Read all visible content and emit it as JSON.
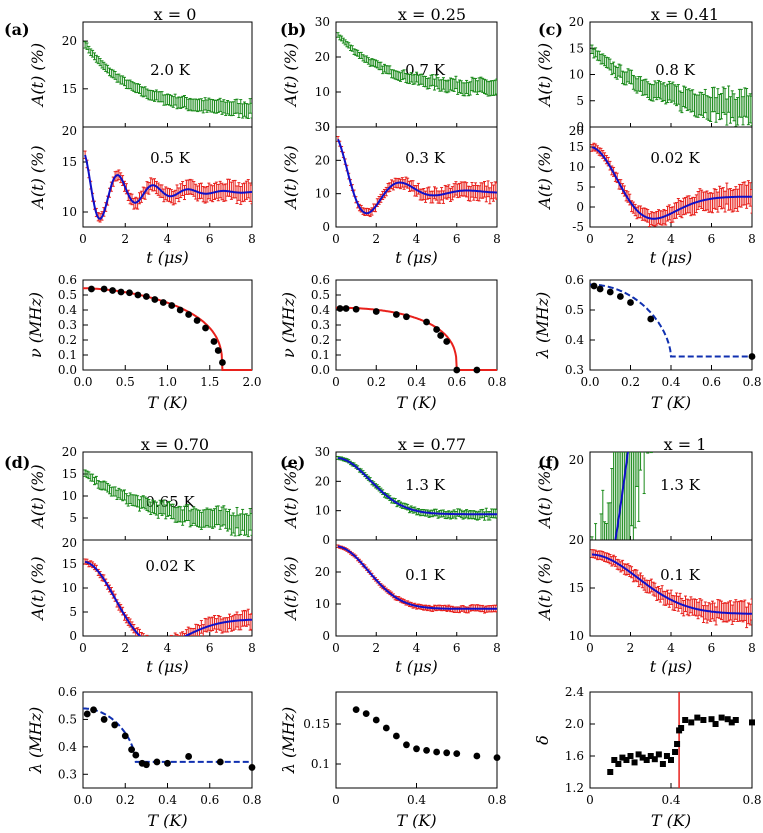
{
  "colors": {
    "hot": "#1a8a1a",
    "cold": "#e8211c",
    "fit": "#1010c8",
    "fit_order": "#e8211c",
    "fit_lambda": "#1030b0",
    "marker": "#000000",
    "tc_line": "#e8211c"
  },
  "chart_data": [
    {
      "id": "a",
      "type": "line",
      "panel_label": "(a)",
      "title": "x = 0",
      "top": {
        "temp_label": "2.0 K",
        "ylabel": "A(t) (%)",
        "ylim": [
          11,
          22
        ],
        "yticks": [
          15,
          20
        ],
        "curve": "decay",
        "start": 20,
        "end": 12.7,
        "tau": 2.2,
        "noise": 0.35
      },
      "bottom": {
        "temp_label": "0.5 K",
        "ylabel": "A(t) (%)",
        "ylim": [
          8.5,
          18.5
        ],
        "yticks": [
          10,
          15
        ],
        "curve": "osc",
        "base": 12.0,
        "amp": 4.2,
        "decay": 0.55,
        "freq": 0.55,
        "noise": 0.45,
        "xlabel": "t (μs)",
        "xlim": [
          0,
          8
        ],
        "xticks": [
          0,
          2,
          4,
          6,
          8
        ]
      },
      "top_axis_label": "20",
      "lower": {
        "type": "scatter",
        "xlabel": "T (K)",
        "ylabel": "ν (MHz)",
        "xlim": [
          0,
          2.0
        ],
        "ylim": [
          0,
          0.6
        ],
        "xticks": [
          0,
          0.5,
          1.0,
          1.5,
          2.0
        ],
        "xtick_labels": [
          "0.0",
          "0.5",
          "1.0",
          "1.5",
          "2.0"
        ],
        "yticks": [
          0,
          0.1,
          0.2,
          0.3,
          0.4,
          0.5,
          0.6
        ],
        "ytick_labels": [
          "0.0",
          "0.1",
          "0.2",
          "0.3",
          "0.4",
          "0.5",
          "0.6"
        ],
        "x": [
          0.1,
          0.25,
          0.35,
          0.45,
          0.55,
          0.65,
          0.75,
          0.85,
          0.95,
          1.05,
          1.15,
          1.25,
          1.35,
          1.45,
          1.55,
          1.6,
          1.65
        ],
        "y": [
          0.54,
          0.54,
          0.53,
          0.52,
          0.515,
          0.5,
          0.49,
          0.47,
          0.45,
          0.43,
          0.4,
          0.37,
          0.33,
          0.28,
          0.19,
          0.13,
          0.05
        ],
        "fit": {
          "kind": "order",
          "y0": 0.545,
          "tc": 1.65,
          "alpha": 1.7,
          "beta": 0.35,
          "xmax": 2.0
        }
      }
    },
    {
      "id": "b",
      "type": "line",
      "panel_label": "(b)",
      "title": "x = 0.25",
      "top": {
        "temp_label": "0.7 K",
        "ylabel": "A(t) (%)",
        "ylim": [
          0,
          30
        ],
        "yticks": [
          0,
          10,
          20,
          30
        ],
        "curve": "decay",
        "start": 27,
        "end": 10.5,
        "tau": 2.4,
        "noise": 1.2
      },
      "bottom": {
        "temp_label": "0.3 K",
        "ylabel": "A(t) (%)",
        "ylim": [
          0,
          30
        ],
        "yticks": [
          0,
          10,
          20,
          30
        ],
        "curve": "osc2",
        "base": 10.5,
        "amp": 17,
        "decay": 0.55,
        "freq": 0.3,
        "noise": 1.4,
        "xlabel": "t (μs)",
        "xlim": [
          0,
          8
        ],
        "xticks": [
          0,
          2,
          4,
          6,
          8
        ]
      },
      "lower": {
        "type": "scatter",
        "xlabel": "T (K)",
        "ylabel": "ν (MHz)",
        "xlim": [
          0,
          0.8
        ],
        "ylim": [
          0,
          0.6
        ],
        "xticks": [
          0,
          0.2,
          0.4,
          0.6,
          0.8
        ],
        "xtick_labels": [
          "0",
          "0.2",
          "0.4",
          "0.6",
          "0.8"
        ],
        "yticks": [
          0,
          0.1,
          0.2,
          0.3,
          0.4,
          0.5,
          0.6
        ],
        "ytick_labels": [
          "0.0",
          "0.1",
          "0.2",
          "0.3",
          "0.4",
          "0.5",
          "0.6"
        ],
        "x": [
          0.02,
          0.05,
          0.1,
          0.2,
          0.3,
          0.35,
          0.45,
          0.5,
          0.52,
          0.55,
          0.6,
          0.7
        ],
        "y": [
          0.41,
          0.41,
          0.405,
          0.39,
          0.37,
          0.355,
          0.32,
          0.27,
          0.23,
          0.19,
          0.0,
          0.0
        ],
        "fit": {
          "kind": "order",
          "y0": 0.415,
          "tc": 0.6,
          "alpha": 2.2,
          "beta": 0.35,
          "xmax": 0.8
        }
      }
    },
    {
      "id": "c",
      "type": "line",
      "panel_label": "(c)",
      "title": "x = 0.41",
      "top": {
        "temp_label": "0.8 K",
        "ylabel": "A(t) (%)",
        "ylim": [
          0,
          20
        ],
        "yticks": [
          0,
          5,
          10,
          15,
          20
        ],
        "curve": "decay",
        "start": 15,
        "end": 2.8,
        "tau": 3.0,
        "noise": 1.6
      },
      "bottom": {
        "temp_label": "0.02 K",
        "ylabel": "A(t) (%)",
        "ylim": [
          -5,
          20
        ],
        "yticks": [
          -5,
          0,
          5,
          10,
          15
        ],
        "curve": "kt",
        "base": 2.6,
        "amp": 12.4,
        "sigma": 0.55,
        "noise": 1.7,
        "xlabel": "t (μs)",
        "xlim": [
          0,
          8
        ],
        "xticks": [
          0,
          2,
          4,
          6,
          8
        ]
      },
      "top_axis_label": "20",
      "lower": {
        "type": "scatter",
        "xlabel": "T (K)",
        "ylabel": "λ (MHz)",
        "xlim": [
          0,
          0.8
        ],
        "ylim": [
          0.3,
          0.6
        ],
        "xticks": [
          0,
          0.2,
          0.4,
          0.6,
          0.8
        ],
        "xtick_labels": [
          "0.0",
          "0.2",
          "0.4",
          "0.6",
          "0.8"
        ],
        "yticks": [
          0.3,
          0.4,
          0.5,
          0.6
        ],
        "ytick_labels": [
          "0.3",
          "0.4",
          "0.5",
          "0.6"
        ],
        "x": [
          0.02,
          0.05,
          0.1,
          0.15,
          0.2,
          0.3,
          0.8
        ],
        "y": [
          0.58,
          0.57,
          0.56,
          0.545,
          0.525,
          0.47,
          0.345
        ],
        "fit": {
          "kind": "lambda",
          "y0": 0.585,
          "tc": 0.4,
          "ybase": 0.345,
          "alpha": 2.0,
          "beta": 0.6,
          "xmax": 0.8
        }
      }
    },
    {
      "id": "d",
      "type": "line",
      "panel_label": "(d)",
      "title": "x = 0.70",
      "top": {
        "temp_label": "0.65 K",
        "ylabel": "A(t) (%)",
        "ylim": [
          0,
          20
        ],
        "yticks": [
          5,
          10,
          15,
          20
        ],
        "curve": "decay",
        "start": 15.5,
        "end": 3.0,
        "tau": 3.2,
        "noise": 1.4
      },
      "bottom": {
        "temp_label": "0.02 K",
        "ylabel": "A(t) (%)",
        "ylim": [
          0,
          20
        ],
        "yticks": [
          0,
          5,
          10,
          15
        ],
        "curve": "kt",
        "base": 3.5,
        "amp": 12.0,
        "sigma": 0.48,
        "noise": 0.9,
        "xlabel": "t (μs)",
        "xlim": [
          0,
          8
        ],
        "xticks": [
          0,
          2,
          4,
          6,
          8
        ]
      },
      "top_axis_label": "20",
      "lower": {
        "type": "scatter",
        "xlabel": "T (K)",
        "ylabel": "λ (MHz)",
        "xlim": [
          0,
          0.8
        ],
        "ylim": [
          0.25,
          0.6
        ],
        "xticks": [
          0,
          0.2,
          0.4,
          0.6,
          0.8
        ],
        "xtick_labels": [
          "0.0",
          "0.2",
          "0.4",
          "0.6",
          "0.8"
        ],
        "yticks": [
          0.3,
          0.4,
          0.5,
          0.6
        ],
        "ytick_labels": [
          "0.3",
          "0.4",
          "0.5",
          "0.6"
        ],
        "x": [
          0.02,
          0.05,
          0.1,
          0.15,
          0.2,
          0.23,
          0.25,
          0.28,
          0.3,
          0.35,
          0.4,
          0.5,
          0.65,
          0.8
        ],
        "y": [
          0.52,
          0.535,
          0.5,
          0.48,
          0.44,
          0.39,
          0.37,
          0.34,
          0.335,
          0.345,
          0.34,
          0.365,
          0.345,
          0.325
        ],
        "fit": {
          "kind": "lambda",
          "y0": 0.54,
          "tc": 0.25,
          "ybase": 0.345,
          "alpha": 2.0,
          "beta": 0.6,
          "xmax": 0.8
        }
      }
    },
    {
      "id": "e",
      "type": "line",
      "panel_label": "(e)",
      "title": "x = 0.77",
      "top": {
        "temp_label": "1.3 K",
        "ylabel": "A(t) (%)",
        "ylim": [
          0,
          30
        ],
        "yticks": [
          0,
          10,
          20,
          30
        ],
        "curve": "gauss",
        "start": 28,
        "end": 8.8,
        "sigma": 0.42,
        "noise": 0.8
      },
      "bottom": {
        "temp_label": "0.1 K",
        "ylabel": "A(t) (%)",
        "ylim": [
          0,
          30
        ],
        "yticks": [
          0,
          10,
          20
        ],
        "curve": "gauss",
        "start": 28,
        "end": 8.5,
        "sigma": 0.44,
        "noise": 0.5,
        "xlabel": "t (μs)",
        "xlim": [
          0,
          8
        ],
        "xticks": [
          0,
          2,
          4,
          6,
          8
        ]
      },
      "lower": {
        "type": "scatter",
        "xlabel": "T (K)",
        "ylabel": "λ (MHz)",
        "xlim": [
          0,
          0.8
        ],
        "ylim": [
          0.07,
          0.19
        ],
        "xticks": [
          0,
          0.4,
          0.8
        ],
        "xtick_labels": [
          "0",
          "0.4",
          "0.8"
        ],
        "yticks": [
          0.1,
          0.15
        ],
        "ytick_labels": [
          "0.1",
          "0.15"
        ],
        "x": [
          0.1,
          0.15,
          0.2,
          0.25,
          0.3,
          0.35,
          0.4,
          0.45,
          0.5,
          0.55,
          0.6,
          0.7,
          0.8
        ],
        "y": [
          0.168,
          0.163,
          0.155,
          0.145,
          0.135,
          0.124,
          0.119,
          0.117,
          0.115,
          0.114,
          0.113,
          0.11,
          0.108
        ]
      }
    },
    {
      "id": "f",
      "type": "line",
      "panel_label": "(f)",
      "title": "x = 1",
      "top": {
        "temp_label": "1.3 K",
        "ylabel": "A(t) (%)",
        "ylim": [
          20,
          20.4
        ],
        "yticks": [
          20
        ],
        "curve": "gauss",
        "start": 19.6,
        "end": 22.0,
        "sigma": 0.34,
        "noise": 0.45,
        "band": [
          19,
          21
        ],
        "ticklabels_override": [
          "20"
        ]
      },
      "bottom": {
        "temp_label": "0.1 K",
        "ylabel": "A(t) (%)",
        "ylim": [
          10,
          20
        ],
        "yticks": [
          10,
          15,
          20
        ],
        "curve": "gauss",
        "start": 18.5,
        "end": 12.3,
        "sigma": 0.3,
        "noise": 0.55,
        "xlabel": "t (μs)",
        "xlim": [
          0,
          8
        ],
        "xticks": [
          0,
          2,
          4,
          6,
          8
        ]
      },
      "lower": {
        "type": "scatter",
        "xlabel": "T (K)",
        "ylabel": "δ",
        "xlim": [
          0,
          0.8
        ],
        "ylim": [
          1.2,
          2.4
        ],
        "xticks": [
          0,
          0.4,
          0.8
        ],
        "xtick_labels": [
          "0",
          "0.4",
          "0.8"
        ],
        "yticks": [
          1.2,
          1.6,
          2.0,
          2.4
        ],
        "ytick_labels": [
          "1.2",
          "1.6",
          "2.0",
          "2.4"
        ],
        "vline": 0.44,
        "x": [
          0.1,
          0.12,
          0.14,
          0.16,
          0.18,
          0.2,
          0.22,
          0.24,
          0.26,
          0.28,
          0.3,
          0.32,
          0.34,
          0.36,
          0.38,
          0.4,
          0.42,
          0.43,
          0.44,
          0.45,
          0.47,
          0.5,
          0.53,
          0.56,
          0.6,
          0.62,
          0.65,
          0.68,
          0.7,
          0.72,
          0.8
        ],
        "y": [
          1.4,
          1.55,
          1.5,
          1.58,
          1.55,
          1.6,
          1.52,
          1.62,
          1.58,
          1.55,
          1.6,
          1.56,
          1.62,
          1.5,
          1.6,
          1.55,
          1.65,
          1.75,
          1.92,
          1.95,
          2.05,
          2.02,
          2.08,
          2.05,
          2.06,
          2.0,
          2.08,
          2.06,
          2.02,
          2.05,
          2.02
        ]
      }
    }
  ]
}
